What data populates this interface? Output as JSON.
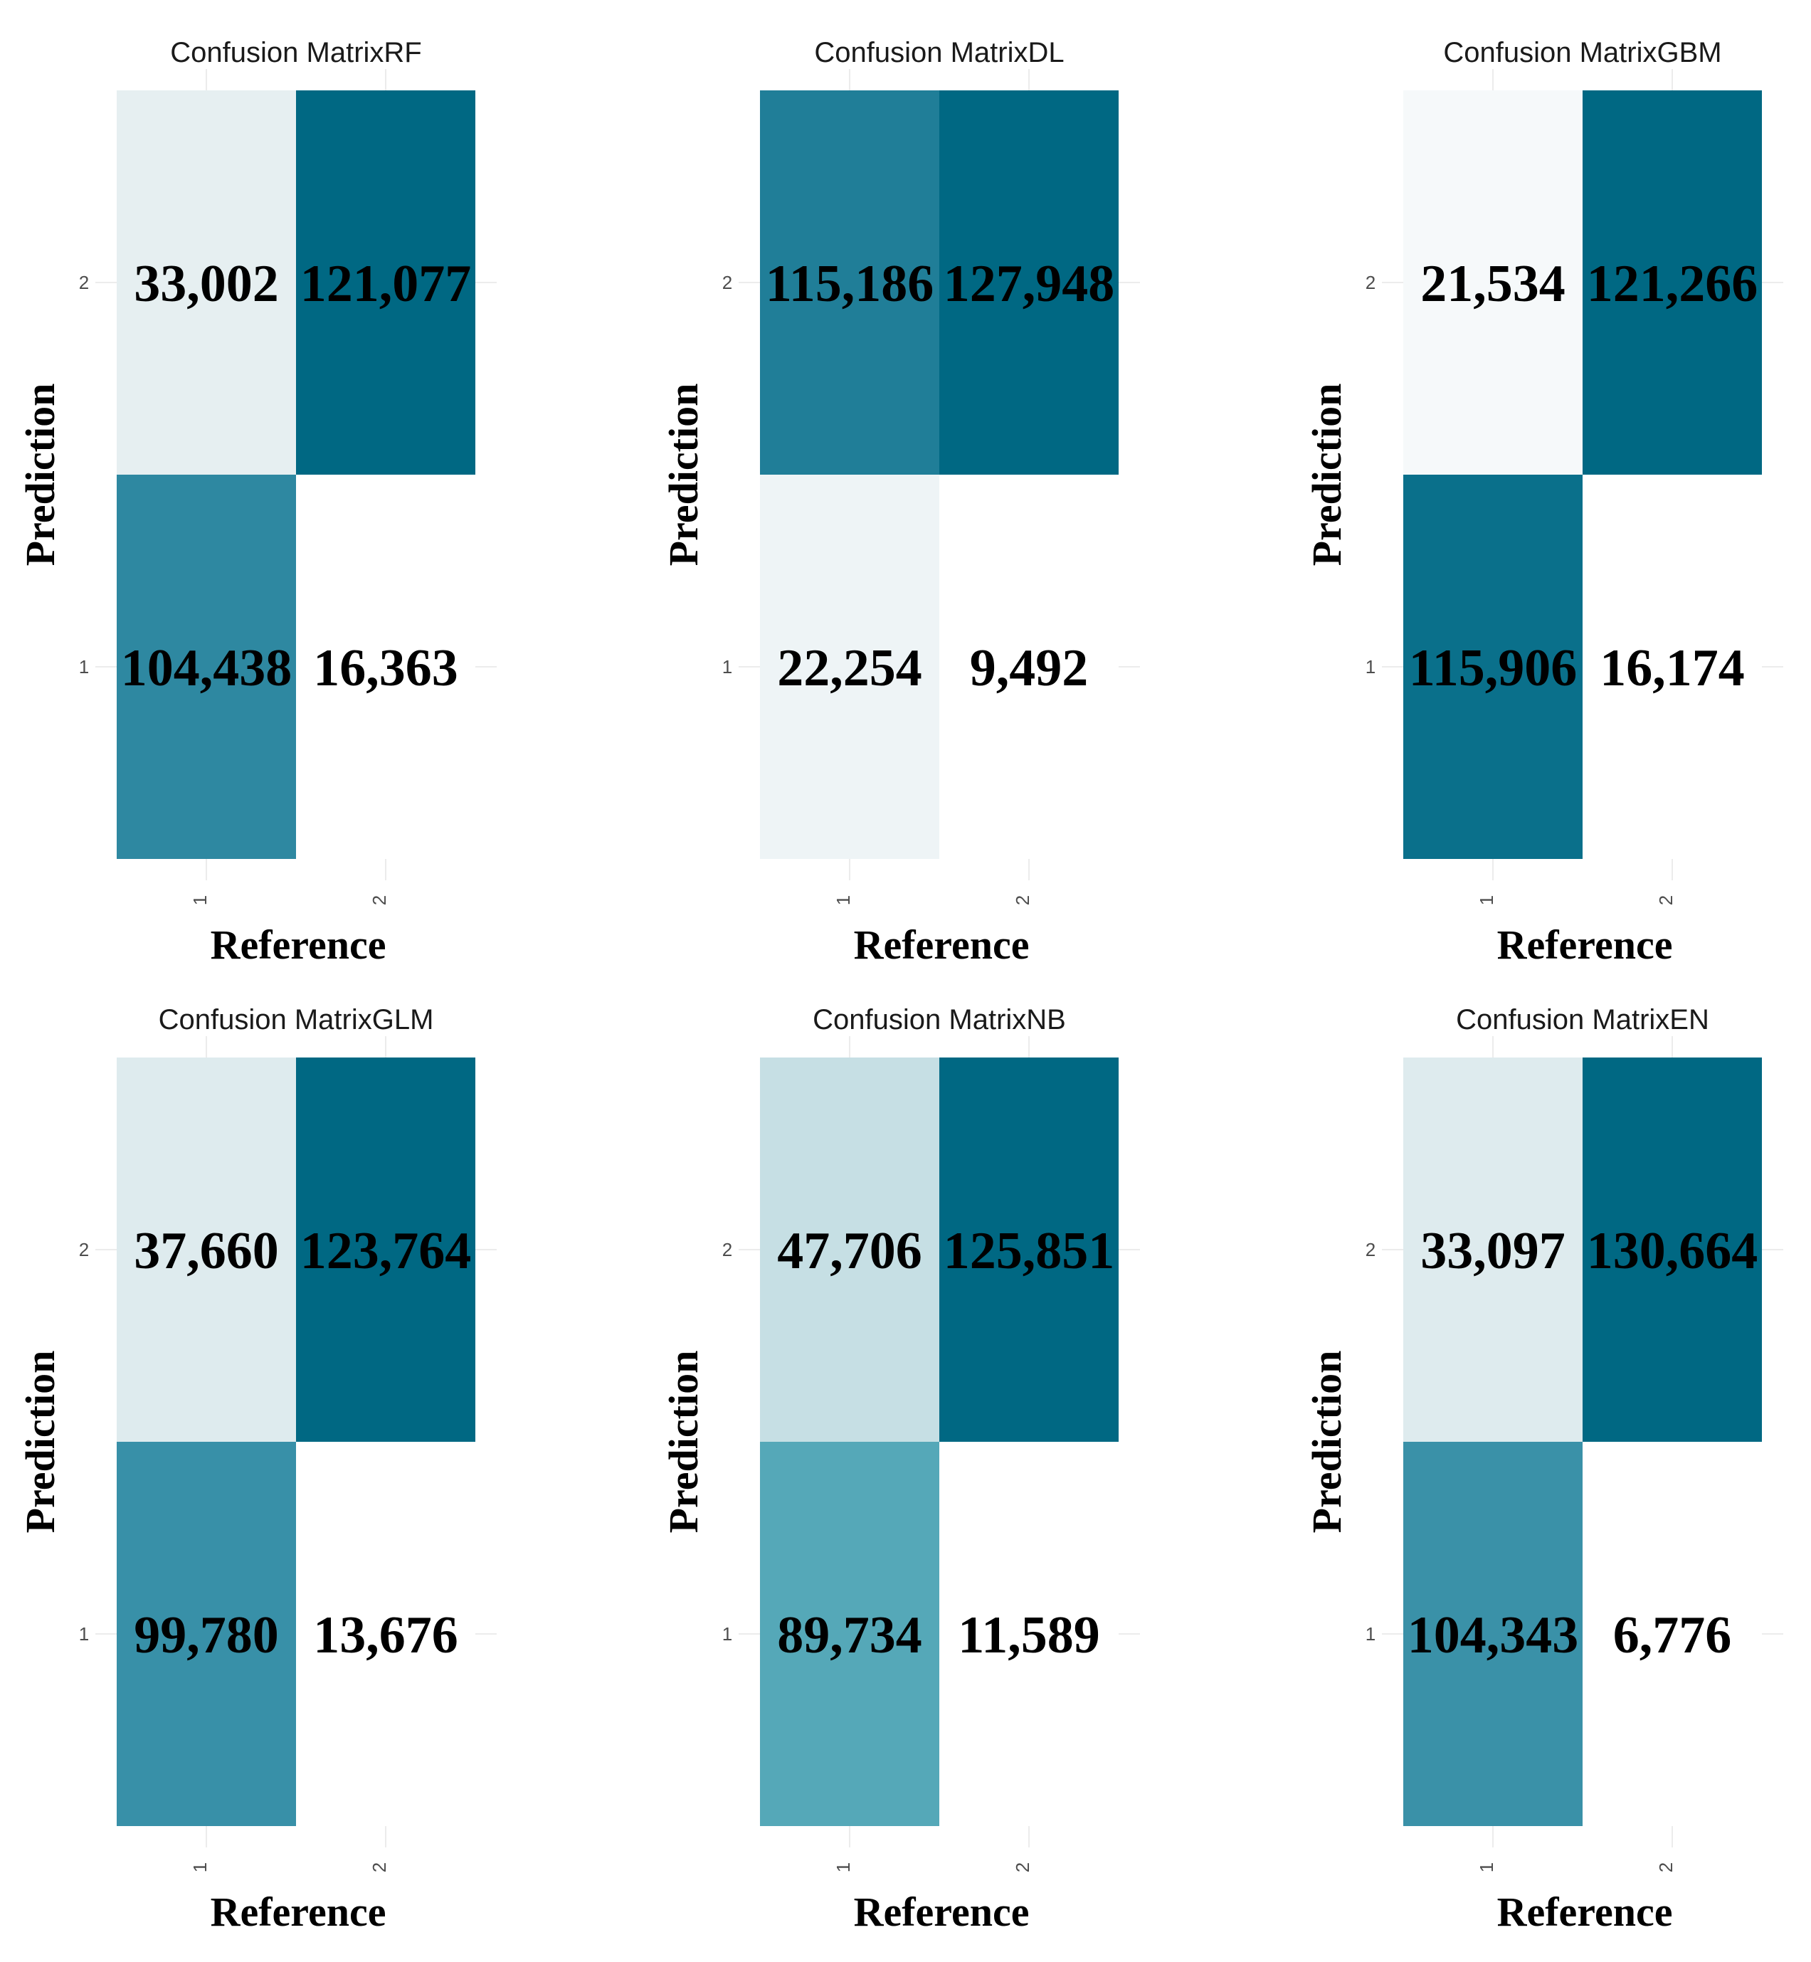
{
  "chart_data": [
    {
      "type": "heatmap",
      "title": "Confusion MatrixRF",
      "xlabel": "Reference",
      "ylabel": "Prediction",
      "x_ticks": [
        "1",
        "2"
      ],
      "y_ticks": [
        "1",
        "2"
      ],
      "cells": [
        {
          "prediction": "2",
          "reference": "1",
          "value": 33002,
          "label": "33,002",
          "color": "#e6eff1"
        },
        {
          "prediction": "2",
          "reference": "2",
          "value": 121077,
          "label": "121,077",
          "color": "#006883"
        },
        {
          "prediction": "1",
          "reference": "1",
          "value": 104438,
          "label": "104,438",
          "color": "#2e88a1"
        },
        {
          "prediction": "1",
          "reference": "2",
          "value": 16363,
          "label": "16,363",
          "color": "#ffffff"
        }
      ]
    },
    {
      "type": "heatmap",
      "title": "Confusion MatrixDL",
      "xlabel": "Reference",
      "ylabel": "Prediction",
      "x_ticks": [
        "1",
        "2"
      ],
      "y_ticks": [
        "1",
        "2"
      ],
      "cells": [
        {
          "prediction": "2",
          "reference": "1",
          "value": 115186,
          "label": "115,186",
          "color": "#207e98"
        },
        {
          "prediction": "2",
          "reference": "2",
          "value": 127948,
          "label": "127,948",
          "color": "#006883"
        },
        {
          "prediction": "1",
          "reference": "1",
          "value": 22254,
          "label": "22,254",
          "color": "#eef4f6"
        },
        {
          "prediction": "1",
          "reference": "2",
          "value": 9492,
          "label": "9,492",
          "color": "#ffffff"
        }
      ]
    },
    {
      "type": "heatmap",
      "title": "Confusion MatrixGBM",
      "xlabel": "Reference",
      "ylabel": "Prediction",
      "x_ticks": [
        "1",
        "2"
      ],
      "y_ticks": [
        "1",
        "2"
      ],
      "cells": [
        {
          "prediction": "2",
          "reference": "1",
          "value": 21534,
          "label": "21,534",
          "color": "#f6f9fa"
        },
        {
          "prediction": "2",
          "reference": "2",
          "value": 121266,
          "label": "121,266",
          "color": "#006883"
        },
        {
          "prediction": "1",
          "reference": "1",
          "value": 115906,
          "label": "115,906",
          "color": "#0a708b"
        },
        {
          "prediction": "1",
          "reference": "2",
          "value": 16174,
          "label": "16,174",
          "color": "#ffffff"
        }
      ]
    },
    {
      "type": "heatmap",
      "title": "Confusion MatrixGLM",
      "xlabel": "Reference",
      "ylabel": "Prediction",
      "x_ticks": [
        "1",
        "2"
      ],
      "y_ticks": [
        "1",
        "2"
      ],
      "cells": [
        {
          "prediction": "2",
          "reference": "1",
          "value": 37660,
          "label": "37,660",
          "color": "#deebee"
        },
        {
          "prediction": "2",
          "reference": "2",
          "value": 123764,
          "label": "123,764",
          "color": "#006883"
        },
        {
          "prediction": "1",
          "reference": "1",
          "value": 99780,
          "label": "99,780",
          "color": "#3890a8"
        },
        {
          "prediction": "1",
          "reference": "2",
          "value": 13676,
          "label": "13,676",
          "color": "#ffffff"
        }
      ]
    },
    {
      "type": "heatmap",
      "title": "Confusion MatrixNB",
      "xlabel": "Reference",
      "ylabel": "Prediction",
      "x_ticks": [
        "1",
        "2"
      ],
      "y_ticks": [
        "1",
        "2"
      ],
      "cells": [
        {
          "prediction": "2",
          "reference": "1",
          "value": 47706,
          "label": "47,706",
          "color": "#c6dfe4"
        },
        {
          "prediction": "2",
          "reference": "2",
          "value": 125851,
          "label": "125,851",
          "color": "#006883"
        },
        {
          "prediction": "1",
          "reference": "1",
          "value": 89734,
          "label": "89,734",
          "color": "#55a8b8"
        },
        {
          "prediction": "1",
          "reference": "2",
          "value": 11589,
          "label": "11,589",
          "color": "#ffffff"
        }
      ]
    },
    {
      "type": "heatmap",
      "title": "Confusion MatrixEN",
      "xlabel": "Reference",
      "ylabel": "Prediction",
      "x_ticks": [
        "1",
        "2"
      ],
      "y_ticks": [
        "1",
        "2"
      ],
      "cells": [
        {
          "prediction": "2",
          "reference": "1",
          "value": 33097,
          "label": "33,097",
          "color": "#deebee"
        },
        {
          "prediction": "2",
          "reference": "2",
          "value": 130664,
          "label": "130,664",
          "color": "#006883"
        },
        {
          "prediction": "1",
          "reference": "1",
          "value": 104343,
          "label": "104,343",
          "color": "#3a91a8"
        },
        {
          "prediction": "1",
          "reference": "2",
          "value": 6776,
          "label": "6,776",
          "color": "#ffffff"
        }
      ]
    }
  ]
}
